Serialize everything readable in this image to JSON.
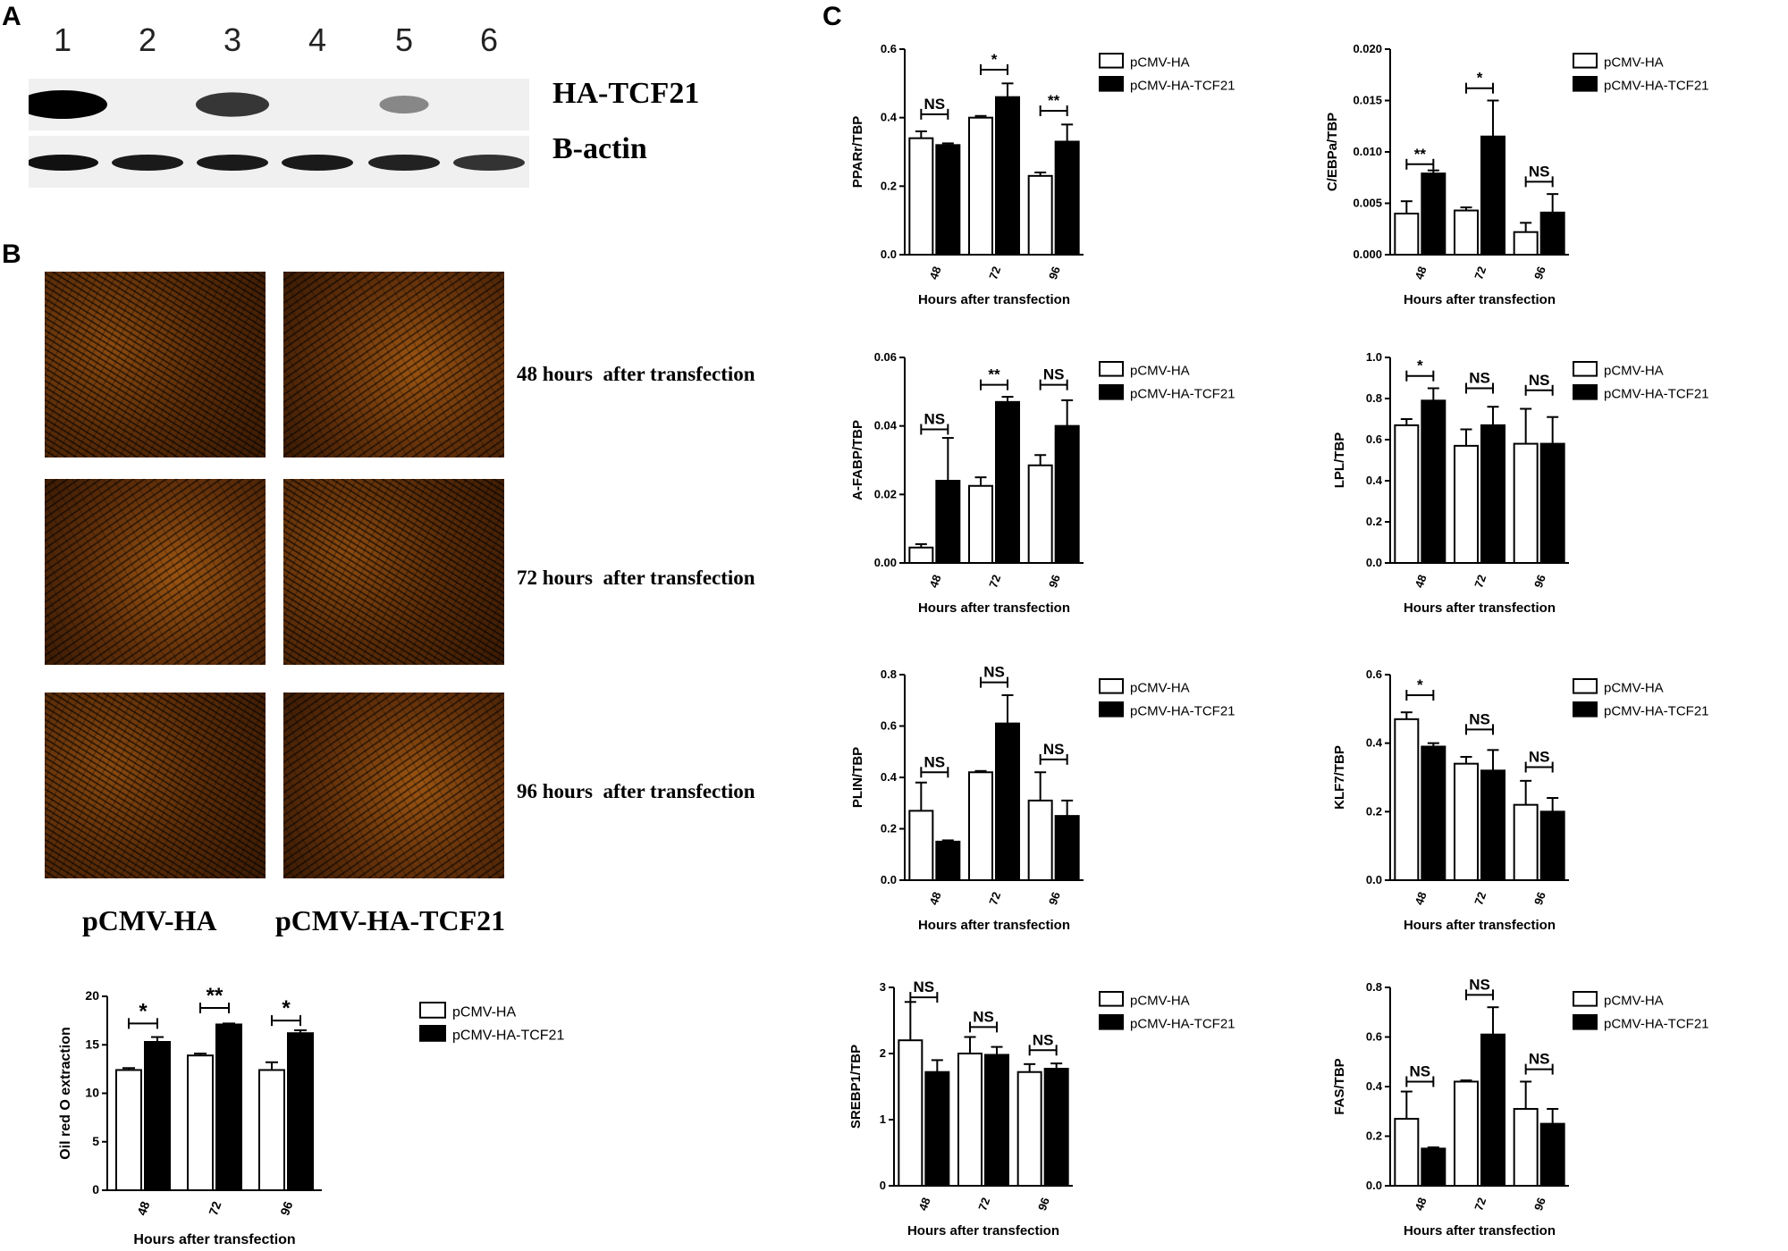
{
  "panels": {
    "A": "A",
    "B": "B",
    "C": "C"
  },
  "blot": {
    "lanes": [
      "1",
      "2",
      "3",
      "4",
      "5",
      "6"
    ],
    "labels": {
      "top": "HA-TCF21",
      "bottom": "B-actin"
    },
    "ha_intensity": [
      1.0,
      0,
      0.7,
      0,
      0.25,
      0
    ],
    "actin_intensity": [
      0.9,
      0.85,
      0.85,
      0.85,
      0.8,
      0.7
    ]
  },
  "micro": {
    "rows": [
      "48 hours  after transfection",
      "72 hours  after transfection",
      "96 hours  after transfection"
    ],
    "cols": [
      "pCMV-HA",
      "pCMV-HA-TCF21"
    ]
  },
  "legend": {
    "ctrl": "pCMV-HA",
    "tcf": "pCMV-HA-TCF21"
  },
  "chart_data": [
    {
      "id": "oro",
      "type": "bar",
      "categories": [
        "48",
        "72",
        "96"
      ],
      "xlabel": "Hours after transfection",
      "ylabel": "Oil red O extraction",
      "ylim": [
        0,
        20
      ],
      "yticks": [
        "0",
        "5",
        "10",
        "15",
        "20"
      ],
      "series": [
        {
          "name": "pCMV-HA",
          "values": [
            12.4,
            13.9,
            12.4
          ],
          "errors": [
            0.2,
            0.2,
            0.8
          ]
        },
        {
          "name": "pCMV-HA-TCF21",
          "values": [
            15.3,
            17.1,
            16.2
          ],
          "errors": [
            0.5,
            0.1,
            0.3
          ]
        }
      ],
      "sig": [
        "*",
        "**",
        "*"
      ],
      "sig_y": [
        17.2,
        18.8,
        17.5
      ]
    },
    {
      "id": "ppar",
      "type": "bar",
      "categories": [
        "48",
        "72",
        "96"
      ],
      "xlabel": "Hours after transfection",
      "ylabel": "PPARr/TBP",
      "ylim": [
        0,
        0.6
      ],
      "yticks": [
        "0.0",
        "0.2",
        "0.4",
        "0.6"
      ],
      "series": [
        {
          "name": "pCMV-HA",
          "values": [
            0.34,
            0.4,
            0.23
          ],
          "errors": [
            0.02,
            0.005,
            0.01
          ]
        },
        {
          "name": "pCMV-HA-TCF21",
          "values": [
            0.32,
            0.46,
            0.33
          ],
          "errors": [
            0.005,
            0.04,
            0.05
          ]
        }
      ],
      "sig": [
        "NS",
        "*",
        "**"
      ],
      "sig_y": [
        0.41,
        0.54,
        0.42
      ]
    },
    {
      "id": "cebpa",
      "type": "bar",
      "categories": [
        "48",
        "72",
        "96"
      ],
      "xlabel": "Hours after transfection",
      "ylabel": "C/EBPa/TBP",
      "ylim": [
        0,
        0.02
      ],
      "yticks": [
        "0.000",
        "0.005",
        "0.010",
        "0.015",
        "0.020"
      ],
      "series": [
        {
          "name": "pCMV-HA",
          "values": [
            0.004,
            0.0043,
            0.0022
          ],
          "errors": [
            0.0012,
            0.0003,
            0.0009
          ]
        },
        {
          "name": "pCMV-HA-TCF21",
          "values": [
            0.0079,
            0.0115,
            0.0041
          ],
          "errors": [
            0.0003,
            0.0035,
            0.0018
          ]
        }
      ],
      "sig": [
        "**",
        "*",
        "NS"
      ],
      "sig_y": [
        0.0088,
        0.0162,
        0.0071
      ]
    },
    {
      "id": "afabp",
      "type": "bar",
      "categories": [
        "48",
        "72",
        "96"
      ],
      "xlabel": "Hours after transfection",
      "ylabel": "A-FABP/TBP",
      "ylim": [
        0,
        0.06
      ],
      "yticks": [
        "0.00",
        "0.02",
        "0.04",
        "0.06"
      ],
      "series": [
        {
          "name": "pCMV-HA",
          "values": [
            0.0045,
            0.0225,
            0.0285
          ],
          "errors": [
            0.001,
            0.0025,
            0.003
          ]
        },
        {
          "name": "pCMV-HA-TCF21",
          "values": [
            0.024,
            0.047,
            0.04
          ],
          "errors": [
            0.0125,
            0.0015,
            0.0075
          ]
        }
      ],
      "sig": [
        "NS",
        "**",
        "NS"
      ],
      "sig_y": [
        0.039,
        0.052,
        0.052
      ]
    },
    {
      "id": "lpl",
      "type": "bar",
      "categories": [
        "48",
        "72",
        "96"
      ],
      "xlabel": "Hours after transfection",
      "ylabel": "LPL/TBP",
      "ylim": [
        0,
        1.0
      ],
      "yticks": [
        "0.0",
        "0.2",
        "0.4",
        "0.6",
        "0.8",
        "1.0"
      ],
      "series": [
        {
          "name": "pCMV-HA",
          "values": [
            0.67,
            0.57,
            0.58
          ],
          "errors": [
            0.03,
            0.08,
            0.17
          ]
        },
        {
          "name": "pCMV-HA-TCF21",
          "values": [
            0.79,
            0.67,
            0.58
          ],
          "errors": [
            0.06,
            0.09,
            0.13
          ]
        }
      ],
      "sig": [
        "*",
        "NS",
        "NS"
      ],
      "sig_y": [
        0.91,
        0.85,
        0.84
      ]
    },
    {
      "id": "plin",
      "type": "bar",
      "categories": [
        "48",
        "72",
        "96"
      ],
      "xlabel": "Hours after transfection",
      "ylabel": "PLIN/TBP",
      "ylim": [
        0,
        0.8
      ],
      "yticks": [
        "0.0",
        "0.2",
        "0.4",
        "0.6",
        "0.8"
      ],
      "series": [
        {
          "name": "pCMV-HA",
          "values": [
            0.27,
            0.42,
            0.31
          ],
          "errors": [
            0.11,
            0.005,
            0.11
          ]
        },
        {
          "name": "pCMV-HA-TCF21",
          "values": [
            0.15,
            0.61,
            0.25
          ],
          "errors": [
            0.005,
            0.11,
            0.06
          ]
        }
      ],
      "sig": [
        "NS",
        "NS",
        "NS"
      ],
      "sig_y": [
        0.42,
        0.77,
        0.47
      ]
    },
    {
      "id": "klf7",
      "type": "bar",
      "categories": [
        "48",
        "72",
        "96"
      ],
      "xlabel": "Hours after transfection",
      "ylabel": "KLF7/TBP",
      "ylim": [
        0,
        0.6
      ],
      "yticks": [
        "0.0",
        "0.2",
        "0.4",
        "0.6"
      ],
      "series": [
        {
          "name": "pCMV-HA",
          "values": [
            0.47,
            0.34,
            0.22
          ],
          "errors": [
            0.02,
            0.02,
            0.07
          ]
        },
        {
          "name": "pCMV-HA-TCF21",
          "values": [
            0.39,
            0.32,
            0.2
          ],
          "errors": [
            0.01,
            0.06,
            0.04
          ]
        }
      ],
      "sig": [
        "*",
        "NS",
        "NS"
      ],
      "sig_y": [
        0.54,
        0.44,
        0.33
      ]
    },
    {
      "id": "srebp1",
      "type": "bar",
      "categories": [
        "48",
        "72",
        "96"
      ],
      "xlabel": "Hours after transfection",
      "ylabel": "SREBP1/TBP",
      "ylim": [
        0,
        3
      ],
      "yticks": [
        "0",
        "1",
        "2",
        "3"
      ],
      "series": [
        {
          "name": "pCMV-HA",
          "values": [
            2.2,
            2.0,
            1.72
          ],
          "errors": [
            0.58,
            0.25,
            0.12
          ]
        },
        {
          "name": "pCMV-HA-TCF21",
          "values": [
            1.72,
            1.98,
            1.77
          ],
          "errors": [
            0.18,
            0.12,
            0.08
          ]
        }
      ],
      "sig": [
        "NS",
        "NS",
        "NS"
      ],
      "sig_y": [
        2.85,
        2.4,
        2.05
      ]
    },
    {
      "id": "fas",
      "type": "bar",
      "categories": [
        "48",
        "72",
        "96"
      ],
      "xlabel": "Hours after transfection",
      "ylabel": "FAS/TBP",
      "ylim": [
        0,
        0.8
      ],
      "yticks": [
        "0.0",
        "0.2",
        "0.4",
        "0.6",
        "0.8"
      ],
      "series": [
        {
          "name": "pCMV-HA",
          "values": [
            0.27,
            0.42,
            0.31
          ],
          "errors": [
            0.11,
            0.005,
            0.11
          ]
        },
        {
          "name": "pCMV-HA-TCF21",
          "values": [
            0.15,
            0.61,
            0.25
          ],
          "errors": [
            0.005,
            0.11,
            0.06
          ]
        }
      ],
      "sig": [
        "NS",
        "NS",
        "NS"
      ],
      "sig_y": [
        0.42,
        0.77,
        0.47
      ]
    }
  ]
}
